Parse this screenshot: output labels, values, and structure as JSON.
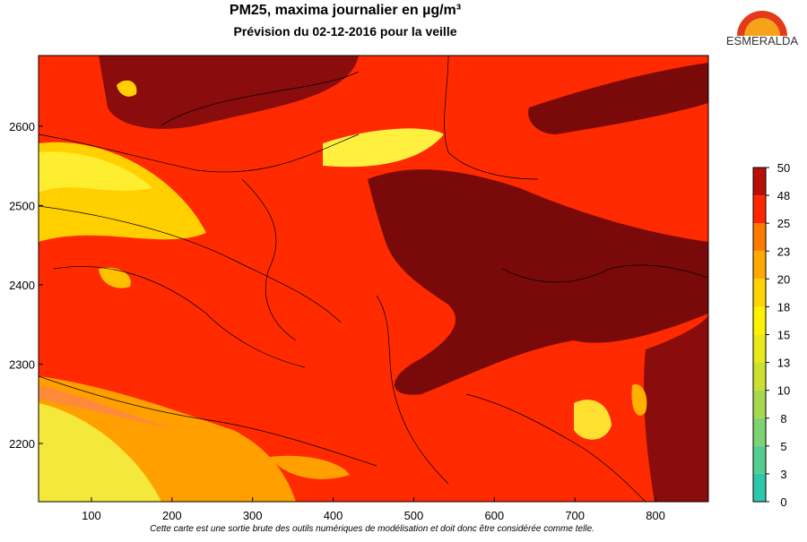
{
  "header": {
    "title": "PM25, maxima journalier en µg/m³",
    "subtitle": "Prévision du 02-12-2016 pour la veille",
    "logo": "ESMERALDA"
  },
  "map": {
    "xlim": [
      34.4,
      865.6
    ],
    "ylim": [
      2126.6,
      2689
    ],
    "xticks": [
      100,
      200,
      300,
      400,
      500,
      600,
      700,
      800
    ],
    "yticks": [
      2200,
      2300,
      2400,
      2500,
      2600
    ]
  },
  "colorbar": {
    "ticks": [
      0,
      3,
      5,
      8,
      10,
      13,
      15,
      18,
      20,
      23,
      25,
      48,
      50
    ],
    "colors": [
      "#2ec7a9",
      "#55cd90",
      "#7dd272",
      "#a6d84f",
      "#cadf2e",
      "#e8e81a",
      "#fff200",
      "#ffd400",
      "#ffa800",
      "#ff7a00",
      "#ff2600",
      "#b81008"
    ]
  },
  "footer": "Cette carte est une sortie brute des outils numériques de modélisation et doit donc être considérée comme telle."
}
